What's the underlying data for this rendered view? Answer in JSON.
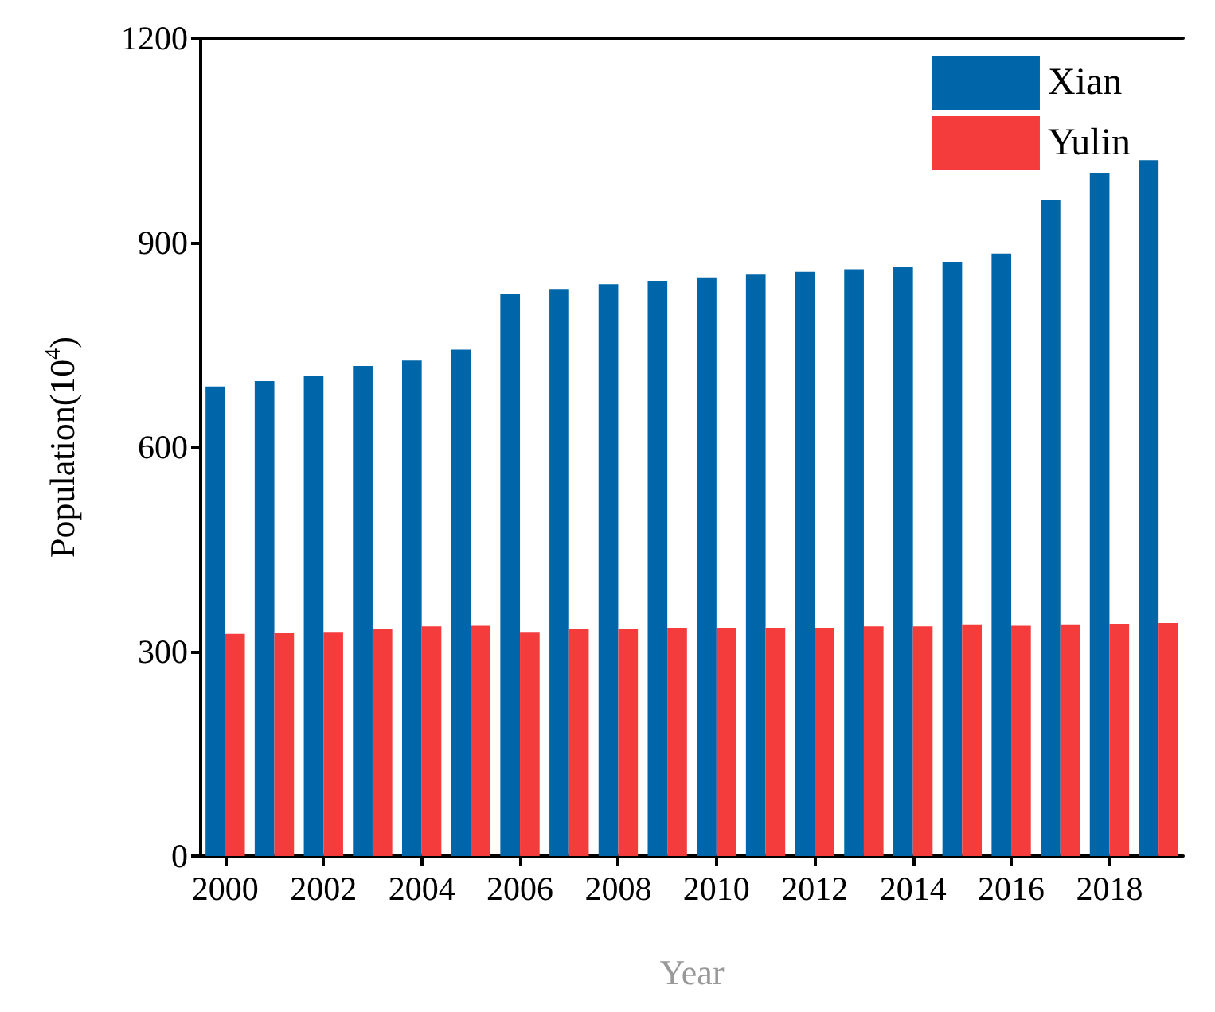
{
  "chart_data": {
    "type": "bar",
    "xlabel": "Year",
    "ylabel": "Population(10$^{4}$)",
    "categories": [
      "2000",
      null,
      "2002",
      null,
      "2004",
      null,
      "2006",
      null,
      "2008",
      null,
      "2010",
      null,
      "2012",
      null,
      "2014",
      null,
      "2016",
      null,
      "2018",
      null
    ],
    "series": [
      {
        "name": "Xian",
        "color": "#0066aa",
        "values": [
          689,
          697,
          704,
          719,
          727,
          743,
          824,
          832,
          839,
          844,
          849,
          853,
          857,
          861,
          865,
          872,
          884,
          963,
          1002,
          1021
        ]
      },
      {
        "name": "Yulin",
        "color": "#f53c3c",
        "values": [
          326,
          327,
          329,
          333,
          337,
          338,
          329,
          333,
          333,
          335,
          335,
          335,
          335,
          337,
          337,
          340,
          338,
          340,
          341,
          342
        ]
      }
    ],
    "ylim": [
      0,
      1200
    ],
    "yticks": [
      0,
      300,
      600,
      900,
      1200
    ],
    "legend": "top right"
  }
}
